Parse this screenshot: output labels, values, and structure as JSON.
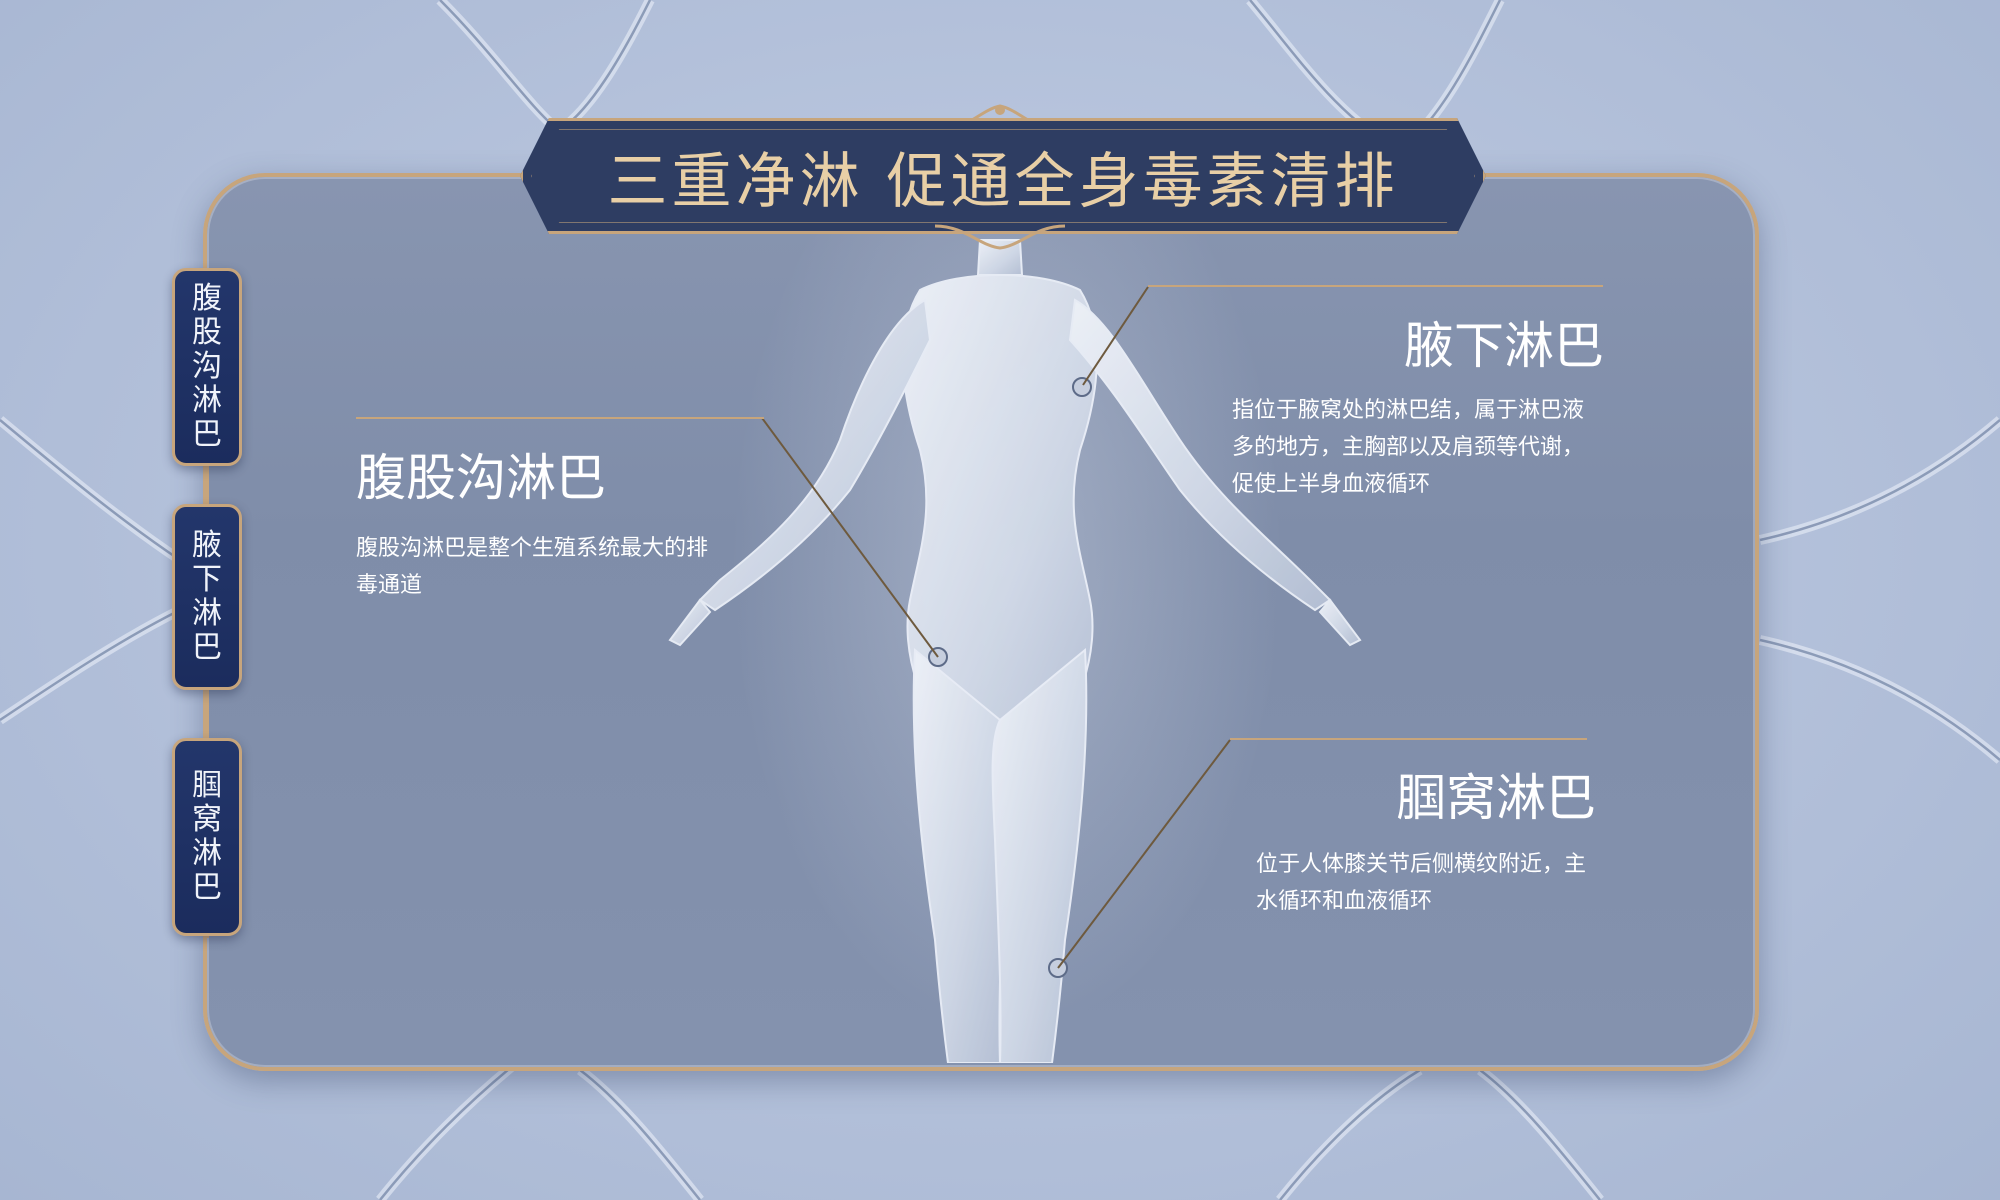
{
  "page": {
    "title": "三重净淋  促通全身毒素清排"
  },
  "side_tabs": [
    {
      "label": "腹股沟淋巴"
    },
    {
      "label": "腋下淋巴"
    },
    {
      "label": "腘窝淋巴"
    }
  ],
  "sections": {
    "groin": {
      "title": "腹股沟淋巴",
      "desc": "腹股沟淋巴是整个生殖系统最大的排毒通道"
    },
    "armpit": {
      "title": "腋下淋巴",
      "desc": "指位于腋窝处的淋巴结，属于淋巴液多的地方，主胸部以及肩颈等代谢，促使上半身血液循环"
    },
    "knee": {
      "title": "腘窝淋巴",
      "desc": "位于人体膝关节后侧横纹附近，主水循环和血液循环"
    }
  },
  "colors": {
    "gold": "#c7a57c",
    "navy": "#2e3d62",
    "tab_blue": "#1b2c5d",
    "panel": "#8492ae"
  }
}
